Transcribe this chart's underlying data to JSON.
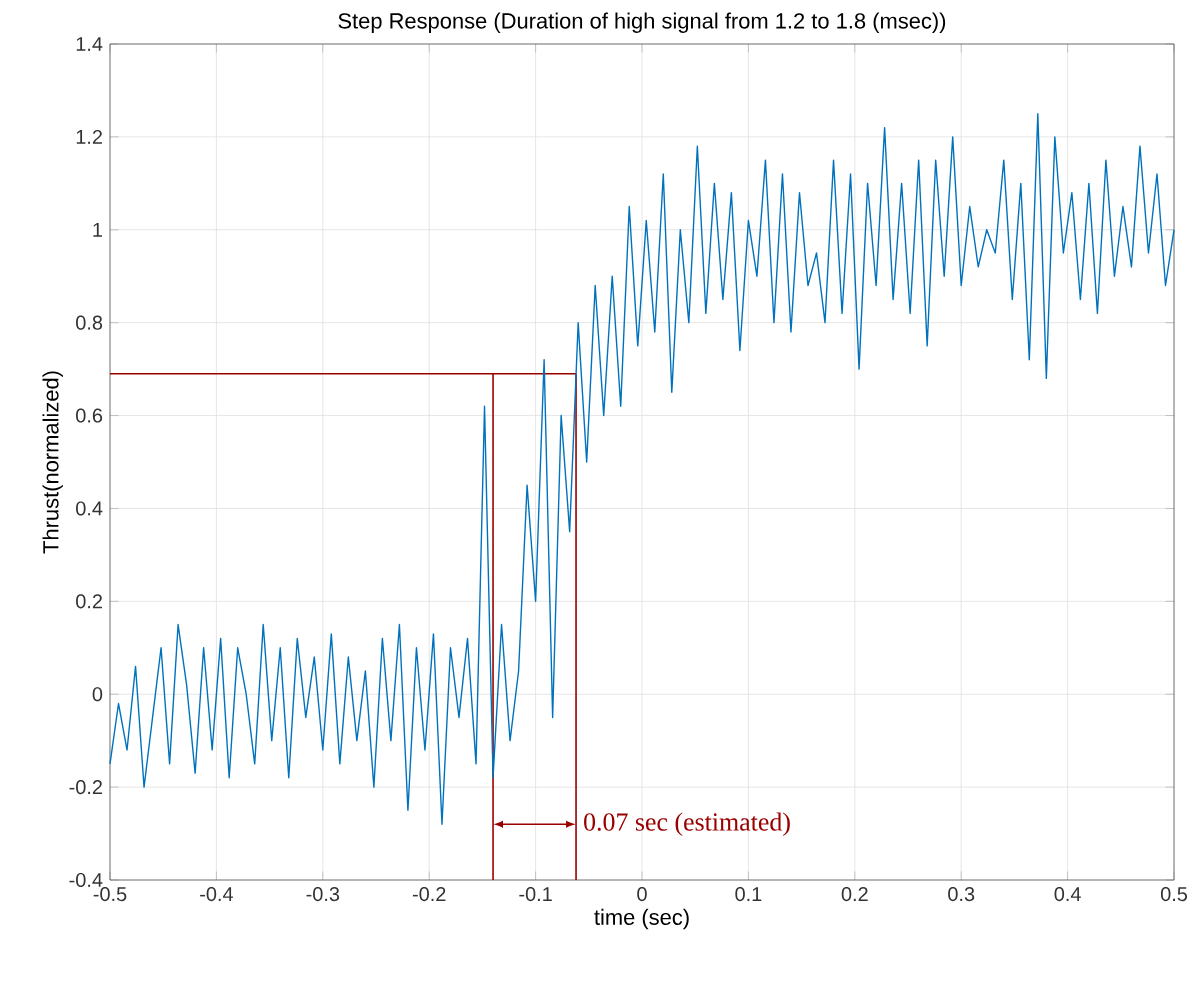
{
  "chart_data": {
    "type": "line",
    "title": "Step Response (Duration of high signal from 1.2 to 1.8 (msec))",
    "xlabel": "time (sec)",
    "ylabel": "Thrust(normalized)",
    "x": [
      -0.5,
      -0.492,
      -0.484,
      -0.476,
      -0.468,
      -0.46,
      -0.452,
      -0.444,
      -0.436,
      -0.428,
      -0.42,
      -0.412,
      -0.404,
      -0.396,
      -0.388,
      -0.38,
      -0.372,
      -0.364,
      -0.356,
      -0.348,
      -0.34,
      -0.332,
      -0.324,
      -0.316,
      -0.308,
      -0.3,
      -0.292,
      -0.284,
      -0.276,
      -0.268,
      -0.26,
      -0.252,
      -0.244,
      -0.236,
      -0.228,
      -0.22,
      -0.212,
      -0.204,
      -0.196,
      -0.188,
      -0.18,
      -0.172,
      -0.164,
      -0.156,
      -0.148,
      -0.14,
      -0.132,
      -0.124,
      -0.116,
      -0.108,
      -0.1,
      -0.092,
      -0.084,
      -0.076,
      -0.068,
      -0.06,
      -0.052,
      -0.044,
      -0.036,
      -0.028,
      -0.02,
      -0.012,
      -0.004,
      0.004,
      0.012,
      0.02,
      0.028,
      0.036,
      0.044,
      0.052,
      0.06,
      0.068,
      0.076,
      0.084,
      0.092,
      0.1,
      0.108,
      0.116,
      0.124,
      0.132,
      0.14,
      0.148,
      0.156,
      0.164,
      0.172,
      0.18,
      0.188,
      0.196,
      0.204,
      0.212,
      0.22,
      0.228,
      0.236,
      0.244,
      0.252,
      0.26,
      0.268,
      0.276,
      0.284,
      0.292,
      0.3,
      0.308,
      0.316,
      0.324,
      0.332,
      0.34,
      0.348,
      0.356,
      0.364,
      0.372,
      0.38,
      0.388,
      0.396,
      0.404,
      0.412,
      0.42,
      0.428,
      0.436,
      0.444,
      0.452,
      0.46,
      0.468,
      0.476,
      0.484,
      0.492,
      0.5
    ],
    "series": [
      {
        "color": "#0072bd",
        "values": [
          -0.15,
          -0.02,
          -0.12,
          0.06,
          -0.2,
          -0.05,
          0.1,
          -0.15,
          0.15,
          0.02,
          -0.17,
          0.1,
          -0.12,
          0.12,
          -0.18,
          0.1,
          0.0,
          -0.15,
          0.15,
          -0.1,
          0.1,
          -0.18,
          0.12,
          -0.05,
          0.08,
          -0.12,
          0.13,
          -0.15,
          0.08,
          -0.1,
          0.05,
          -0.2,
          0.12,
          -0.1,
          0.15,
          -0.25,
          0.1,
          -0.12,
          0.13,
          -0.28,
          0.1,
          -0.05,
          0.12,
          -0.15,
          0.62,
          -0.18,
          0.15,
          -0.1,
          0.05,
          0.45,
          0.2,
          0.72,
          -0.05,
          0.6,
          0.35,
          0.8,
          0.5,
          0.88,
          0.6,
          0.9,
          0.62,
          1.05,
          0.75,
          1.02,
          0.78,
          1.12,
          0.65,
          1.0,
          0.8,
          1.18,
          0.82,
          1.1,
          0.85,
          1.08,
          0.74,
          1.02,
          0.9,
          1.15,
          0.8,
          1.12,
          0.78,
          1.08,
          0.88,
          0.95,
          0.8,
          1.15,
          0.82,
          1.12,
          0.7,
          1.1,
          0.88,
          1.22,
          0.85,
          1.1,
          0.82,
          1.15,
          0.75,
          1.15,
          0.9,
          1.2,
          0.88,
          1.05,
          0.92,
          1.0,
          0.95,
          1.15,
          0.85,
          1.1,
          0.72,
          1.25,
          0.68,
          1.2,
          0.95,
          1.08,
          0.85,
          1.1,
          0.82,
          1.15,
          0.9,
          1.05,
          0.92,
          1.18,
          0.95,
          1.12,
          0.88,
          1.0
        ]
      }
    ],
    "xlim": [
      -0.5,
      0.5
    ],
    "xticks": [
      -0.5,
      -0.4,
      -0.3,
      -0.2,
      -0.1,
      0,
      0.1,
      0.2,
      0.3,
      0.4,
      0.5
    ],
    "ylim": [
      -0.4,
      1.4
    ],
    "yticks": [
      -0.4,
      -0.2,
      0,
      0.2,
      0.4,
      0.6,
      0.8,
      1,
      1.2,
      1.4
    ],
    "grid": true,
    "ref_lines": [
      {
        "axis": "y",
        "value": 0.69,
        "color": "#990000"
      },
      {
        "axis": "x",
        "value": -0.14,
        "color": "#990000"
      },
      {
        "axis": "x",
        "value": -0.062,
        "color": "#990000"
      }
    ],
    "annotations": [
      {
        "text": "0.07 sec (estimated)",
        "x": -0.062,
        "y": -0.28
      }
    ]
  }
}
